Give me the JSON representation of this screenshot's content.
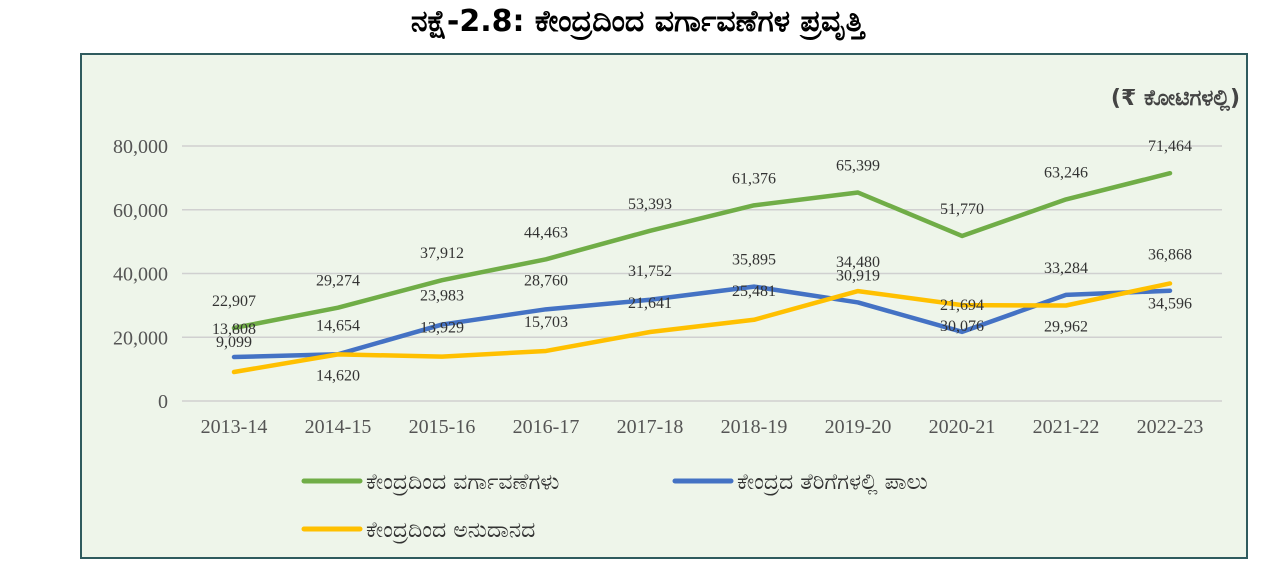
{
  "title": "ನಕ್ಷೆ-2.8: ಕೇಂದ್ರದಿಂದ ವರ್ಗಾವಣೆಗಳ ಪ್ರವೃತ್ತಿ",
  "chart_data": {
    "type": "line",
    "unit_label": "(₹ ಕೋಟಿಗಳಲ್ಲಿ)",
    "categories": [
      "2013-14",
      "2014-15",
      "2015-16",
      "2016-17",
      "2017-18",
      "2018-19",
      "2019-20",
      "2020-21",
      "2021-22",
      "2022-23"
    ],
    "ylim": [
      0,
      80000
    ],
    "yticks": [
      0,
      20000,
      40000,
      60000,
      80000
    ],
    "ytick_labels": [
      "0",
      "20,000",
      "40,000",
      "60,000",
      "80,000"
    ],
    "grid": true,
    "legend_position": "bottom",
    "series": [
      {
        "name": "ಕೇಂದ್ರದಿಂದ ವರ್ಗಾವಣೆಗಳು",
        "color": "#70ad47",
        "values": [
          22907,
          29274,
          37912,
          44463,
          53393,
          61376,
          65399,
          51770,
          63246,
          71464
        ],
        "labels": [
          "22,907",
          "29,274",
          "37,912",
          "44,463",
          "53,393",
          "61,376",
          "65,399",
          "51,770",
          "63,246",
          "71,464"
        ]
      },
      {
        "name": "ಕೇಂದ್ರದ ತೆರಿಗೆಗಳಲ್ಲಿ ಪಾಲು",
        "color": "#4472c4",
        "values": [
          13808,
          14654,
          23983,
          28760,
          31752,
          35895,
          30919,
          21694,
          33284,
          34596
        ],
        "labels": [
          "13,808",
          "14,654",
          "23,983",
          "28,760",
          "31,752",
          "35,895",
          "30,919",
          "21,694",
          "33,284",
          "34,596"
        ]
      },
      {
        "name": "ಕೇಂದ್ರದಿಂದ ಅನುದಾನದ",
        "color": "#ffc000",
        "values": [
          9099,
          14620,
          13929,
          15703,
          21641,
          25481,
          34480,
          30076,
          29962,
          36868
        ],
        "labels": [
          "9,099",
          "14,620",
          "13,929",
          "15,703",
          "21,641",
          "25,481",
          "34,480",
          "30,076",
          "29,962",
          "36,868"
        ]
      }
    ]
  }
}
